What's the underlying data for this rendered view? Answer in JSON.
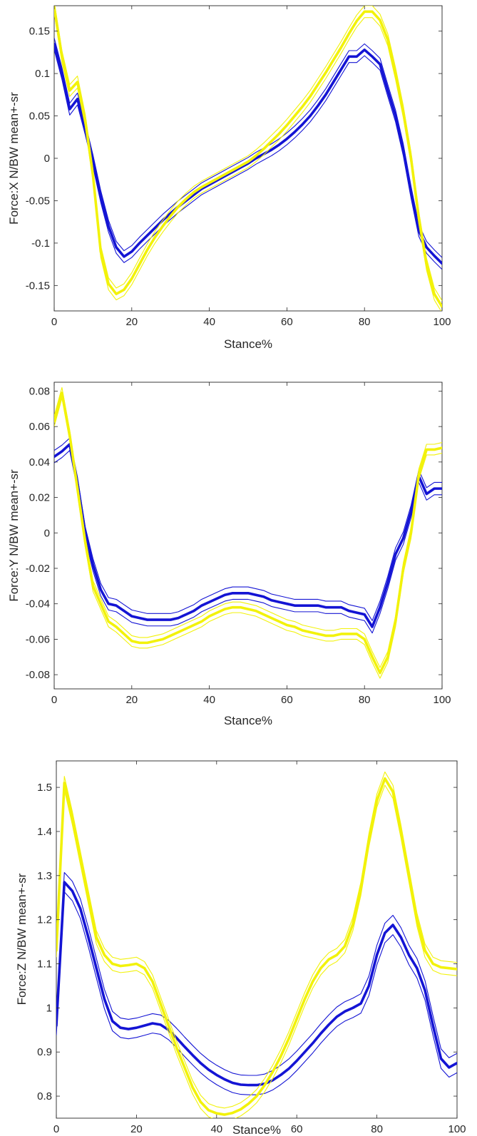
{
  "colors": {
    "blue": "#1414d4",
    "yellow": "#f2f20a",
    "axis": "#262626",
    "background": "#ffffff"
  },
  "chart_data": [
    {
      "id": "force-x",
      "type": "line",
      "xlabel": "Stance%",
      "ylabel": "Force:X N/BW mean+-sr",
      "xlim": [
        0,
        100
      ],
      "ylim": [
        -0.18,
        0.18
      ],
      "x_ticks": [
        0,
        20,
        40,
        60,
        80,
        100
      ],
      "x_tick_labels": [
        "0",
        "20",
        "40",
        "60",
        "80",
        "100"
      ],
      "y_ticks": [
        0.15,
        0.1,
        0.05,
        0,
        -0.05,
        -0.1,
        -0.15
      ],
      "y_tick_labels": [
        "0.15",
        "0.1",
        "0.05",
        "0",
        "-0.05",
        "-0.1",
        "-0.15"
      ],
      "x": [
        0,
        2,
        4,
        6,
        8,
        10,
        12,
        14,
        16,
        18,
        20,
        22,
        24,
        26,
        28,
        30,
        32,
        34,
        36,
        38,
        40,
        42,
        44,
        46,
        48,
        50,
        52,
        54,
        56,
        58,
        60,
        62,
        64,
        66,
        68,
        70,
        72,
        74,
        76,
        78,
        80,
        82,
        84,
        86,
        88,
        90,
        92,
        94,
        96,
        98,
        100
      ],
      "series": [
        {
          "name": "blue",
          "color": "#1414d4",
          "values": [
            0.135,
            0.1,
            0.058,
            0.07,
            0.035,
            -0.003,
            -0.045,
            -0.08,
            -0.105,
            -0.116,
            -0.11,
            -0.1,
            -0.091,
            -0.082,
            -0.073,
            -0.065,
            -0.057,
            -0.05,
            -0.043,
            -0.036,
            -0.031,
            -0.026,
            -0.021,
            -0.016,
            -0.011,
            -0.006,
            0.0,
            0.005,
            0.01,
            0.016,
            0.023,
            0.031,
            0.04,
            0.05,
            0.062,
            0.075,
            0.09,
            0.105,
            0.12,
            0.12,
            0.128,
            0.12,
            0.111,
            0.08,
            0.05,
            0.01,
            -0.04,
            -0.085,
            -0.105,
            -0.115,
            -0.124
          ],
          "band": 0.007
        },
        {
          "name": "yellow",
          "color": "#f2f20a",
          "values": [
            0.178,
            0.12,
            0.08,
            0.09,
            0.045,
            -0.02,
            -0.11,
            -0.148,
            -0.16,
            -0.155,
            -0.142,
            -0.125,
            -0.108,
            -0.093,
            -0.08,
            -0.068,
            -0.057,
            -0.048,
            -0.04,
            -0.034,
            -0.029,
            -0.024,
            -0.019,
            -0.014,
            -0.009,
            -0.004,
            0.003,
            0.011,
            0.02,
            0.029,
            0.039,
            0.05,
            0.061,
            0.073,
            0.087,
            0.101,
            0.116,
            0.131,
            0.147,
            0.162,
            0.173,
            0.173,
            0.163,
            0.14,
            0.1,
            0.055,
            0.0,
            -0.07,
            -0.125,
            -0.16,
            -0.175
          ],
          "band": 0.007
        }
      ]
    },
    {
      "id": "force-y",
      "type": "line",
      "xlabel": "Stance%",
      "ylabel": "Force:Y N/BW mean+-sr",
      "xlim": [
        0,
        100
      ],
      "ylim": [
        -0.088,
        0.085
      ],
      "x_ticks": [
        0,
        20,
        40,
        60,
        80,
        100
      ],
      "x_tick_labels": [
        "0",
        "20",
        "40",
        "60",
        "80",
        "100"
      ],
      "y_ticks": [
        0.08,
        0.06,
        0.04,
        0.02,
        0,
        -0.02,
        -0.04,
        -0.06,
        -0.08
      ],
      "y_tick_labels": [
        "0.08",
        "0.06",
        "0.04",
        "0.02",
        "0",
        "-0.02",
        "-0.04",
        "-0.06",
        "-0.08"
      ],
      "x": [
        0,
        2,
        4,
        6,
        8,
        10,
        12,
        14,
        16,
        18,
        20,
        22,
        24,
        26,
        28,
        30,
        32,
        34,
        36,
        38,
        40,
        42,
        44,
        46,
        48,
        50,
        52,
        54,
        56,
        58,
        60,
        62,
        64,
        66,
        68,
        70,
        72,
        74,
        76,
        78,
        80,
        82,
        84,
        86,
        88,
        90,
        92,
        94,
        96,
        98,
        100
      ],
      "series": [
        {
          "name": "blue",
          "color": "#1414d4",
          "values": [
            0.043,
            0.046,
            0.05,
            0.028,
            0.0,
            -0.018,
            -0.032,
            -0.04,
            -0.041,
            -0.044,
            -0.047,
            -0.048,
            -0.049,
            -0.049,
            -0.049,
            -0.049,
            -0.048,
            -0.046,
            -0.044,
            -0.041,
            -0.039,
            -0.037,
            -0.035,
            -0.034,
            -0.034,
            -0.034,
            -0.035,
            -0.036,
            -0.038,
            -0.039,
            -0.04,
            -0.041,
            -0.041,
            -0.041,
            -0.041,
            -0.042,
            -0.042,
            -0.042,
            -0.044,
            -0.045,
            -0.046,
            -0.053,
            -0.042,
            -0.028,
            -0.012,
            -0.003,
            0.012,
            0.032,
            0.022,
            0.025,
            0.025
          ],
          "band": 0.0035
        },
        {
          "name": "yellow",
          "color": "#f2f20a",
          "values": [
            0.063,
            0.079,
            0.055,
            0.025,
            -0.005,
            -0.03,
            -0.04,
            -0.05,
            -0.053,
            -0.057,
            -0.061,
            -0.062,
            -0.062,
            -0.061,
            -0.06,
            -0.058,
            -0.056,
            -0.054,
            -0.052,
            -0.05,
            -0.047,
            -0.045,
            -0.043,
            -0.042,
            -0.042,
            -0.043,
            -0.044,
            -0.046,
            -0.048,
            -0.05,
            -0.052,
            -0.053,
            -0.055,
            -0.056,
            -0.057,
            -0.058,
            -0.058,
            -0.057,
            -0.057,
            -0.057,
            -0.06,
            -0.07,
            -0.079,
            -0.07,
            -0.05,
            -0.02,
            0.0,
            0.033,
            0.047,
            0.047,
            0.048
          ],
          "band": 0.003
        }
      ]
    },
    {
      "id": "force-z",
      "type": "line",
      "xlabel": "Stance%",
      "ylabel": "Force:Z N/BW mean+-sr",
      "xlim": [
        0,
        100
      ],
      "ylim": [
        0.75,
        1.56
      ],
      "x_ticks": [
        0,
        20,
        40,
        60,
        80,
        100
      ],
      "x_tick_labels": [
        "0",
        "20",
        "40",
        "60",
        "80",
        "100"
      ],
      "y_ticks": [
        1.5,
        1.4,
        1.3,
        1.2,
        1.1,
        1.0,
        0.9,
        0.8
      ],
      "y_tick_labels": [
        "1.5",
        "1.4",
        "1.3",
        "1.2",
        "1.1",
        "1",
        "0.9",
        "0.8"
      ],
      "x": [
        0,
        2,
        4,
        6,
        8,
        10,
        12,
        14,
        16,
        18,
        20,
        22,
        24,
        26,
        28,
        30,
        32,
        34,
        36,
        38,
        40,
        42,
        44,
        46,
        48,
        50,
        52,
        54,
        56,
        58,
        60,
        62,
        64,
        66,
        68,
        70,
        72,
        74,
        76,
        78,
        80,
        82,
        84,
        86,
        88,
        90,
        92,
        94,
        96,
        98,
        100
      ],
      "series": [
        {
          "name": "blue",
          "color": "#1414d4",
          "values": [
            0.96,
            1.285,
            1.265,
            1.225,
            1.16,
            1.09,
            1.02,
            0.97,
            0.955,
            0.952,
            0.955,
            0.96,
            0.965,
            0.962,
            0.95,
            0.932,
            0.912,
            0.893,
            0.875,
            0.86,
            0.848,
            0.838,
            0.83,
            0.826,
            0.825,
            0.825,
            0.828,
            0.836,
            0.848,
            0.862,
            0.88,
            0.9,
            0.92,
            0.942,
            0.962,
            0.98,
            0.992,
            1.0,
            1.01,
            1.05,
            1.12,
            1.17,
            1.188,
            1.16,
            1.12,
            1.09,
            1.04,
            0.96,
            0.885,
            0.865,
            0.875
          ],
          "band": 0.022
        },
        {
          "name": "yellow",
          "color": "#f2f20a",
          "values": [
            1.13,
            1.51,
            1.43,
            1.34,
            1.25,
            1.16,
            1.12,
            1.1,
            1.095,
            1.097,
            1.1,
            1.09,
            1.06,
            1.01,
            0.96,
            0.91,
            0.865,
            0.82,
            0.787,
            0.768,
            0.761,
            0.758,
            0.762,
            0.77,
            0.783,
            0.8,
            0.825,
            0.855,
            0.89,
            0.93,
            0.975,
            1.02,
            1.06,
            1.09,
            1.11,
            1.12,
            1.14,
            1.19,
            1.27,
            1.38,
            1.47,
            1.52,
            1.49,
            1.4,
            1.3,
            1.2,
            1.13,
            1.1,
            1.092,
            1.09,
            1.088
          ],
          "band": 0.015
        }
      ]
    }
  ]
}
